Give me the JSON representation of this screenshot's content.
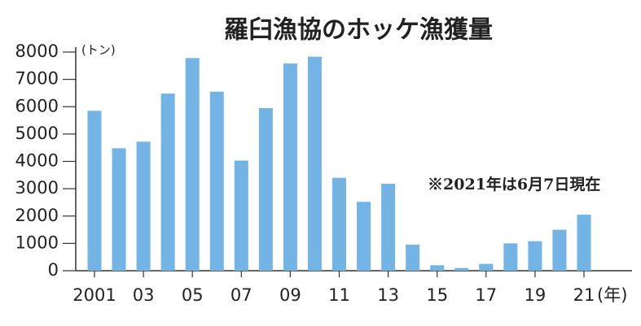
{
  "chart_data": {
    "type": "bar",
    "title": "羅臼漁協のホッケ漁獲量",
    "y_unit": "(トン)",
    "x_unit": "(年)",
    "annotation": "※2021年は6月7日現在",
    "categories": [
      "2001",
      null,
      "03",
      null,
      "05",
      null,
      "07",
      null,
      "09",
      null,
      "11",
      null,
      "13",
      null,
      "15",
      null,
      "17",
      null,
      "19",
      null,
      "21"
    ],
    "values": [
      5850,
      4480,
      4720,
      6480,
      7780,
      6550,
      4030,
      5950,
      7580,
      7830,
      3400,
      2520,
      3180,
      950,
      200,
      100,
      250,
      1000,
      1080,
      1500,
      2050
    ],
    "color": "#74b4e4",
    "ylim": [
      0,
      8000
    ],
    "yticks": [
      0,
      1000,
      2000,
      3000,
      4000,
      5000,
      6000,
      7000,
      8000
    ]
  }
}
